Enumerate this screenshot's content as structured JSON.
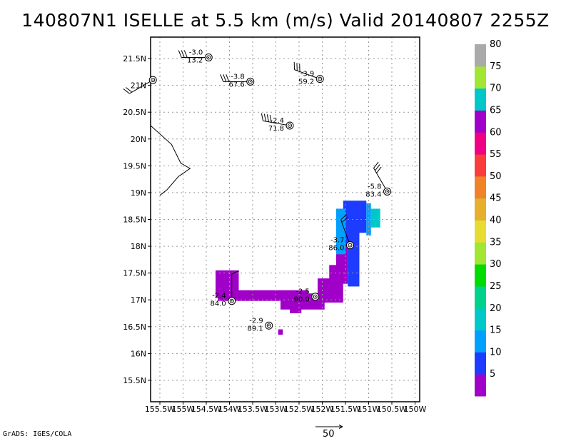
{
  "title": "140807N1 ISELLE at 5.5 km (m/s) Valid 20140807 2255Z",
  "credit": "GrADS: IGES/COLA",
  "reference_vector": {
    "label": "50",
    "value": 50
  },
  "chart_data": {
    "type": "heatmap",
    "title": "140807N1 ISELLE at 5.5 km (m/s) Valid 20140807 2255Z",
    "units": "m/s",
    "xlim": [
      -155.7,
      -149.9
    ],
    "ylim": [
      15.1,
      21.9
    ],
    "grid": true,
    "x_ticks": [
      {
        "value": -155.5,
        "label": "155.5W"
      },
      {
        "value": -155.0,
        "label": "155W"
      },
      {
        "value": -154.5,
        "label": "154.5W"
      },
      {
        "value": -154.0,
        "label": "154W"
      },
      {
        "value": -153.5,
        "label": "153.5W"
      },
      {
        "value": -153.0,
        "label": "153W"
      },
      {
        "value": -152.5,
        "label": "152.5W"
      },
      {
        "value": -152.0,
        "label": "152W"
      },
      {
        "value": -151.5,
        "label": "151.5W"
      },
      {
        "value": -151.0,
        "label": "151W"
      },
      {
        "value": -150.5,
        "label": "150.5W"
      },
      {
        "value": -150.0,
        "label": "150W"
      }
    ],
    "y_ticks": [
      {
        "value": 15.5,
        "label": "15.5N"
      },
      {
        "value": 16.0,
        "label": "16N"
      },
      {
        "value": 16.5,
        "label": "16.5N"
      },
      {
        "value": 17.0,
        "label": "17N"
      },
      {
        "value": 17.5,
        "label": "17.5N"
      },
      {
        "value": 18.0,
        "label": "18N"
      },
      {
        "value": 18.5,
        "label": "18.5N"
      },
      {
        "value": 19.0,
        "label": "19N"
      },
      {
        "value": 19.5,
        "label": "19.5N"
      },
      {
        "value": 20.0,
        "label": "20N"
      },
      {
        "value": 20.5,
        "label": "20.5N"
      },
      {
        "value": 21.0,
        "label": "21N"
      },
      {
        "value": 21.5,
        "label": "21.5N"
      }
    ],
    "colorbar": {
      "labels": [
        "5",
        "10",
        "15",
        "20",
        "25",
        "30",
        "35",
        "40",
        "45",
        "50",
        "55",
        "60",
        "65",
        "70",
        "75",
        "80"
      ],
      "colors": [
        "#a000c8",
        "#1e3cff",
        "#00a0ff",
        "#00c8c8",
        "#00d28c",
        "#00dc00",
        "#a0e632",
        "#e6dc32",
        "#e6af2d",
        "#f08228",
        "#fa3c3c",
        "#f00082",
        "#a000c8",
        "#00c8c8",
        "#a0e632",
        "#aaaaaa"
      ]
    },
    "coastline": [
      {
        "lon": -155.7,
        "lat": 20.25
      },
      {
        "lon": -155.25,
        "lat": 19.9
      },
      {
        "lon": -155.05,
        "lat": 19.55
      },
      {
        "lon": -154.85,
        "lat": 19.45
      },
      {
        "lon": -155.1,
        "lat": 19.3
      },
      {
        "lon": -155.35,
        "lat": 19.05
      },
      {
        "lon": -155.5,
        "lat": 18.95
      }
    ],
    "dropsondes": [
      {
        "lon": -154.45,
        "lat": 21.52,
        "top": "-3.0",
        "bottom": "13.2",
        "wind_dir": 270,
        "wind_speed": 25
      },
      {
        "lon": -155.65,
        "lat": 21.1,
        "top": "",
        "bottom": "",
        "wind_dir": 240,
        "wind_speed": 20
      },
      {
        "lon": -153.55,
        "lat": 21.07,
        "top": "-3.8",
        "bottom": "67.6",
        "wind_dir": 270,
        "wind_speed": 25
      },
      {
        "lon": -152.05,
        "lat": 21.12,
        "top": "-3.9",
        "bottom": "59.2",
        "wind_dir": 290,
        "wind_speed": 25
      },
      {
        "lon": -152.7,
        "lat": 20.25,
        "top": "-2.4",
        "bottom": "71.8",
        "wind_dir": 280,
        "wind_speed": 35
      },
      {
        "lon": -150.6,
        "lat": 19.02,
        "top": "-5.8",
        "bottom": "83.4",
        "wind_dir": 330,
        "wind_speed": 25
      },
      {
        "lon": -151.4,
        "lat": 18.02,
        "top": "-3.7",
        "bottom": "86.0",
        "wind_dir": 340,
        "wind_speed": 20
      },
      {
        "lon": -152.15,
        "lat": 17.06,
        "top": "-2.5",
        "bottom": "90.0",
        "wind_dir": 0,
        "wind_speed": 0
      },
      {
        "lon": -153.95,
        "lat": 16.98,
        "top": "-2.4",
        "bottom": "84.0",
        "wind_dir": 0,
        "wind_speed": 10
      },
      {
        "lon": -153.15,
        "lat": 16.52,
        "top": "-2.9",
        "bottom": "89.1",
        "wind_dir": 0,
        "wind_speed": 0
      }
    ],
    "field": [
      {
        "lon_min": -154.3,
        "lon_max": -153.8,
        "lat_min": 17.05,
        "lat_max": 17.55,
        "speed": 5
      },
      {
        "lon_min": -154.25,
        "lon_max": -152.3,
        "lat_min": 16.98,
        "lat_max": 17.18,
        "speed": 5
      },
      {
        "lon_min": -152.9,
        "lon_max": -151.95,
        "lat_min": 16.82,
        "lat_max": 17.12,
        "speed": 5
      },
      {
        "lon_min": -152.7,
        "lon_max": -152.45,
        "lat_min": 16.75,
        "lat_max": 16.9,
        "speed": 5
      },
      {
        "lon_min": -152.1,
        "lon_max": -151.55,
        "lat_min": 16.95,
        "lat_max": 17.4,
        "speed": 5
      },
      {
        "lon_min": -151.85,
        "lon_max": -151.45,
        "lat_min": 17.3,
        "lat_max": 17.65,
        "speed": 5
      },
      {
        "lon_min": -151.7,
        "lon_max": -151.45,
        "lat_min": 17.6,
        "lat_max": 18.0,
        "speed": 5
      },
      {
        "lon_min": -152.95,
        "lon_max": -152.85,
        "lat_min": 16.35,
        "lat_max": 16.45,
        "speed": 5
      },
      {
        "lon_min": -151.45,
        "lon_max": -151.2,
        "lat_min": 17.25,
        "lat_max": 18.3,
        "speed": 10
      },
      {
        "lon_min": -151.55,
        "lon_max": -151.3,
        "lat_min": 18.0,
        "lat_max": 18.85,
        "speed": 10
      },
      {
        "lon_min": -151.3,
        "lon_max": -151.05,
        "lat_min": 18.25,
        "lat_max": 18.85,
        "speed": 10
      },
      {
        "lon_min": -151.7,
        "lon_max": -151.5,
        "lat_min": 17.85,
        "lat_max": 18.7,
        "speed": 15
      },
      {
        "lon_min": -151.05,
        "lon_max": -150.95,
        "lat_min": 18.2,
        "lat_max": 18.8,
        "speed": 15
      },
      {
        "lon_min": -150.95,
        "lon_max": -150.75,
        "lat_min": 18.35,
        "lat_max": 18.7,
        "speed": 20
      }
    ]
  }
}
